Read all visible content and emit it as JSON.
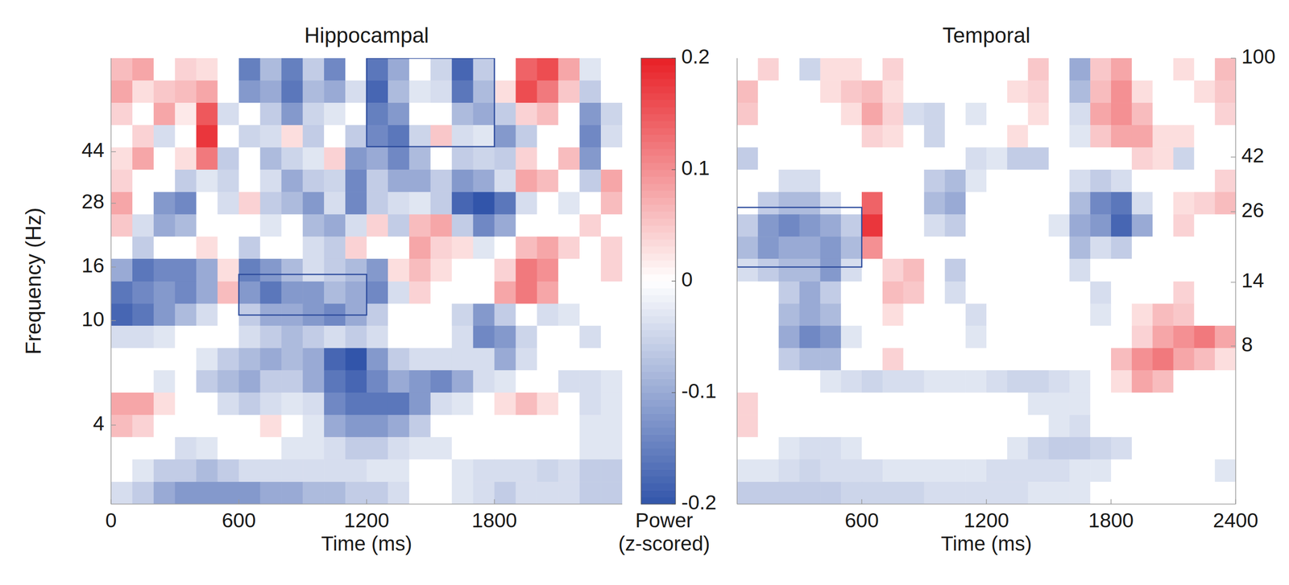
{
  "chart_data": [
    {
      "type": "heatmap",
      "title": "Hippocampal",
      "x_label": "Time (ms)",
      "y_label": "Frequency (Hz)",
      "xlim": [
        0,
        2400
      ],
      "xticks": [
        0,
        600,
        1200,
        1800
      ],
      "ylim": [
        2,
        100
      ],
      "yticks": [
        4,
        10,
        16,
        28,
        44
      ],
      "log": "y",
      "x_edges": [
        0,
        100,
        200,
        300,
        400,
        500,
        600,
        700,
        800,
        900,
        1000,
        1100,
        1200,
        1300,
        1400,
        1500,
        1600,
        1700,
        1800,
        1900,
        2000,
        2100,
        2200,
        2300,
        2400
      ],
      "y_edges": [
        100,
        82.2,
        67.6,
        55.6,
        45.7,
        37.6,
        30.9,
        25.4,
        20.9,
        17.2,
        14.1,
        11.6,
        9.56,
        7.86,
        6.47,
        5.32,
        4.37,
        3.6,
        2.96,
        2.43,
        2.0
      ],
      "cells": [
        [
          0.06,
          0.08,
          0,
          0.04,
          0.03,
          0,
          -0.15,
          -0.08,
          -0.15,
          -0.06,
          -0.14,
          0,
          -0.16,
          -0.1,
          0,
          -0.05,
          -0.18,
          -0.06,
          0,
          0.14,
          0.16,
          0.08,
          -0.03,
          0
        ],
        [
          0.08,
          0.03,
          0.05,
          0.06,
          0.08,
          0,
          -0.12,
          -0.1,
          -0.16,
          -0.08,
          -0.1,
          -0.04,
          -0.18,
          -0.08,
          -0.03,
          -0.04,
          -0.16,
          -0.08,
          0.03,
          0.16,
          0.12,
          0.05,
          -0.06,
          0
        ],
        [
          0.04,
          0,
          0.08,
          0.02,
          0.15,
          -0.04,
          0,
          -0.06,
          -0.12,
          -0.05,
          -0.03,
          0,
          -0.15,
          -0.12,
          0,
          0,
          -0.08,
          -0.1,
          -0.06,
          0.04,
          0.06,
          0,
          -0.12,
          -0.05
        ],
        [
          0,
          0.04,
          -0.04,
          0,
          0.18,
          0,
          -0.05,
          -0.04,
          0.03,
          -0.06,
          0,
          -0.06,
          -0.14,
          -0.16,
          -0.05,
          0.05,
          -0.04,
          -0.03,
          -0.12,
          -0.06,
          0,
          0,
          -0.14,
          -0.04
        ],
        [
          0.03,
          0.08,
          0,
          0.03,
          0.12,
          -0.06,
          0,
          -0.08,
          -0.05,
          -0.03,
          0.04,
          -0.12,
          -0.1,
          -0.14,
          -0.08,
          0,
          -0.06,
          -0.05,
          -0.06,
          0.04,
          0,
          0.06,
          -0.12,
          0
        ],
        [
          0.04,
          0,
          0,
          -0.06,
          -0.03,
          -0.05,
          0,
          -0.04,
          -0.1,
          -0.06,
          -0.05,
          -0.14,
          -0.06,
          -0.1,
          -0.1,
          -0.06,
          -0.12,
          -0.1,
          -0.04,
          0.08,
          0.06,
          0,
          -0.06,
          0.08
        ],
        [
          0.08,
          0,
          -0.12,
          -0.14,
          0,
          -0.04,
          0.04,
          -0.06,
          -0.08,
          -0.12,
          -0.04,
          -0.14,
          -0.06,
          -0.04,
          -0.03,
          -0.06,
          -0.18,
          -0.2,
          -0.16,
          -0.04,
          0,
          -0.03,
          0,
          0.06
        ],
        [
          0.05,
          -0.04,
          -0.1,
          -0.08,
          0,
          0,
          0,
          -0.03,
          0,
          -0.08,
          -0.1,
          -0.04,
          0.04,
          -0.06,
          0.06,
          0.08,
          -0.06,
          -0.14,
          -0.1,
          0,
          0,
          0,
          0.04,
          0
        ],
        [
          0,
          -0.06,
          0,
          0,
          0.03,
          0,
          -0.06,
          0,
          0,
          -0.04,
          -0.06,
          0.04,
          0,
          0,
          0.08,
          0.04,
          0.03,
          -0.03,
          0,
          0.06,
          0.08,
          0.04,
          0,
          0.04
        ],
        [
          -0.1,
          -0.16,
          -0.14,
          -0.14,
          -0.1,
          0.03,
          -0.15,
          -0.12,
          -0.08,
          -0.04,
          -0.06,
          -0.08,
          -0.12,
          0.03,
          0.06,
          0.03,
          0,
          0,
          0.04,
          0.12,
          0.1,
          0,
          0,
          0.04
        ],
        [
          -0.16,
          -0.14,
          -0.12,
          -0.14,
          -0.1,
          0.06,
          -0.12,
          -0.16,
          -0.12,
          -0.12,
          -0.08,
          -0.1,
          -0.14,
          -0.04,
          0.04,
          0,
          0,
          0,
          0.08,
          0.12,
          0.08,
          0,
          0,
          0
        ],
        [
          -0.18,
          -0.16,
          -0.12,
          -0.08,
          -0.04,
          0,
          -0.06,
          -0.1,
          -0.1,
          -0.12,
          -0.14,
          -0.1,
          -0.06,
          0,
          0,
          0,
          -0.05,
          -0.12,
          -0.06,
          0,
          -0.04,
          -0.03,
          0,
          0
        ],
        [
          -0.04,
          -0.04,
          -0.03,
          0,
          0,
          0,
          -0.04,
          -0.06,
          -0.08,
          -0.06,
          -0.04,
          -0.06,
          -0.04,
          0,
          0,
          0,
          -0.04,
          -0.14,
          -0.12,
          -0.05,
          0,
          0,
          -0.04,
          0
        ],
        [
          0,
          0,
          0,
          0,
          -0.03,
          -0.06,
          -0.08,
          -0.1,
          -0.08,
          -0.1,
          -0.18,
          -0.2,
          -0.12,
          -0.06,
          -0.04,
          -0.04,
          -0.04,
          -0.04,
          -0.1,
          -0.04,
          0,
          0,
          0,
          0
        ],
        [
          0,
          0,
          -0.03,
          0,
          -0.06,
          -0.08,
          -0.1,
          -0.06,
          -0.06,
          -0.1,
          -0.16,
          -0.18,
          -0.14,
          -0.1,
          -0.12,
          -0.14,
          -0.1,
          -0.04,
          -0.03,
          0,
          0,
          -0.04,
          -0.04,
          -0.03
        ],
        [
          0.08,
          0.08,
          0.03,
          0,
          0,
          -0.04,
          -0.06,
          -0.04,
          -0.03,
          -0.04,
          -0.14,
          -0.16,
          -0.16,
          -0.16,
          -0.12,
          -0.04,
          -0.03,
          0,
          0.03,
          0.06,
          0.03,
          0,
          -0.04,
          -0.03
        ],
        [
          0.06,
          0.04,
          0,
          0,
          0,
          0,
          0,
          0.03,
          0,
          -0.03,
          -0.1,
          -0.12,
          -0.12,
          -0.1,
          -0.06,
          0,
          0,
          0,
          0,
          0,
          0,
          0,
          -0.03,
          -0.03
        ],
        [
          0,
          0,
          0,
          -0.04,
          -0.03,
          0,
          0,
          0,
          -0.03,
          -0.03,
          -0.04,
          -0.06,
          -0.06,
          -0.04,
          -0.03,
          -0.03,
          0,
          0,
          0,
          0,
          0,
          0,
          -0.03,
          -0.03
        ],
        [
          0,
          -0.03,
          -0.06,
          -0.06,
          -0.08,
          -0.06,
          -0.04,
          -0.04,
          -0.04,
          -0.04,
          -0.04,
          -0.04,
          -0.03,
          -0.03,
          0,
          0,
          -0.03,
          -0.04,
          -0.04,
          -0.04,
          -0.05,
          -0.04,
          -0.06,
          -0.06
        ],
        [
          -0.04,
          -0.06,
          -0.1,
          -0.12,
          -0.12,
          -0.12,
          -0.12,
          -0.1,
          -0.1,
          -0.08,
          -0.08,
          -0.06,
          -0.06,
          -0.04,
          0,
          0,
          -0.03,
          -0.04,
          -0.06,
          -0.04,
          -0.04,
          -0.04,
          -0.06,
          -0.06
        ]
      ],
      "boxes": [
        {
          "x": [
            1200,
            1800
          ],
          "y": [
            46,
            100
          ]
        },
        {
          "x": [
            600,
            1200
          ],
          "y": [
            10.5,
            15
          ]
        }
      ],
      "colorbar": {
        "range": [
          -0.2,
          0.2
        ],
        "ticks": [
          0.2,
          0.1,
          0,
          -0.1,
          -0.2
        ],
        "label": "Power (z-scored)"
      }
    },
    {
      "type": "heatmap",
      "title": "Temporal",
      "x_label": "Time (ms)",
      "xlim": [
        0,
        2400
      ],
      "xticks": [
        600,
        1200,
        1800,
        2400
      ],
      "ylim": [
        2,
        100
      ],
      "yticks": [
        8,
        14,
        26,
        42,
        100
      ],
      "log": "y",
      "x_edges": [
        0,
        100,
        200,
        300,
        400,
        500,
        600,
        700,
        800,
        900,
        1000,
        1100,
        1200,
        1300,
        1400,
        1500,
        1600,
        1700,
        1800,
        1900,
        2000,
        2100,
        2200,
        2300,
        2400
      ],
      "y_edges": [
        100,
        82.2,
        67.6,
        55.6,
        45.7,
        37.6,
        30.9,
        25.4,
        20.9,
        17.2,
        14.1,
        11.6,
        9.56,
        7.86,
        6.47,
        5.32,
        4.37,
        3.6,
        2.96,
        2.43,
        2.0
      ],
      "cells": [
        [
          0,
          0.04,
          0,
          -0.05,
          0.03,
          0.03,
          0,
          0.04,
          0,
          0,
          0,
          0,
          0,
          0,
          0.05,
          0,
          -0.1,
          0.05,
          0.08,
          0,
          0,
          0.03,
          0,
          0.06
        ],
        [
          0.06,
          0,
          0,
          0,
          0.03,
          0.05,
          0.06,
          0.03,
          0,
          0,
          0,
          0,
          0,
          0.03,
          0.04,
          0,
          -0.08,
          0.06,
          0.1,
          0.03,
          0,
          0,
          0.03,
          0.05
        ],
        [
          0.05,
          0,
          0,
          0,
          0,
          0.03,
          0.08,
          0.04,
          -0.04,
          -0.05,
          0,
          -0.03,
          0,
          0,
          0.03,
          0,
          -0.04,
          0.08,
          0.1,
          0.06,
          0,
          0,
          0,
          0.04
        ],
        [
          0,
          0,
          0,
          0,
          0,
          0,
          0.04,
          0.03,
          0,
          -0.05,
          0,
          0,
          0,
          0.03,
          0,
          0,
          -0.03,
          0.05,
          0.08,
          0.08,
          0.03,
          0.03,
          0,
          0
        ],
        [
          -0.06,
          0,
          0,
          0,
          0,
          0,
          0,
          0,
          0,
          0,
          0,
          -0.04,
          -0.03,
          -0.06,
          -0.06,
          0,
          0,
          0,
          0,
          0.04,
          0.03,
          -0.05,
          0,
          0
        ],
        [
          0,
          0,
          -0.04,
          -0.04,
          0,
          0,
          0,
          0,
          0,
          -0.06,
          -0.08,
          -0.03,
          0,
          0,
          0,
          0,
          -0.04,
          -0.06,
          -0.04,
          0,
          0,
          0,
          0,
          0.04
        ],
        [
          0,
          -0.06,
          -0.08,
          -0.08,
          -0.04,
          0,
          0.14,
          0,
          0,
          -0.08,
          -0.1,
          0,
          0,
          0,
          0,
          0,
          -0.08,
          -0.14,
          -0.16,
          -0.04,
          0,
          0.03,
          0.04,
          0.06
        ],
        [
          -0.06,
          -0.12,
          -0.14,
          -0.12,
          -0.1,
          -0.06,
          0.18,
          0,
          0,
          -0.04,
          -0.06,
          0,
          0,
          0,
          0,
          -0.03,
          -0.1,
          -0.12,
          -0.18,
          -0.1,
          0,
          0.04,
          0,
          0
        ],
        [
          -0.08,
          -0.12,
          -0.1,
          -0.1,
          -0.12,
          -0.08,
          0.1,
          0,
          0,
          0,
          0,
          0,
          0,
          0,
          0,
          0,
          -0.08,
          -0.04,
          -0.06,
          0,
          0,
          0,
          0,
          0
        ],
        [
          -0.04,
          -0.06,
          -0.08,
          -0.08,
          -0.12,
          -0.04,
          0,
          0.04,
          0.06,
          0,
          -0.06,
          0,
          0,
          0,
          0,
          0,
          -0.04,
          0,
          0,
          0,
          0,
          0,
          0,
          0
        ],
        [
          0,
          0,
          -0.06,
          -0.1,
          -0.06,
          0,
          0,
          0.06,
          0.05,
          0,
          -0.04,
          0,
          0,
          0,
          0,
          0,
          0,
          -0.04,
          0,
          0,
          0,
          0.04,
          0,
          0
        ],
        [
          0,
          0,
          -0.08,
          -0.1,
          -0.08,
          0,
          0,
          0.03,
          0,
          0,
          0,
          -0.04,
          0,
          0,
          0,
          0,
          0,
          -0.03,
          0,
          0.03,
          0.06,
          0.05,
          0,
          0
        ],
        [
          0,
          0,
          -0.1,
          -0.14,
          -0.12,
          -0.03,
          0,
          0,
          0,
          0,
          0,
          -0.03,
          0,
          0,
          0,
          0,
          0,
          0,
          0,
          0.04,
          0.08,
          0.1,
          0.12,
          0.08
        ],
        [
          0,
          0,
          -0.06,
          -0.08,
          -0.08,
          0,
          0,
          0.04,
          0,
          0,
          0,
          0,
          0,
          0,
          0,
          0,
          0,
          0,
          0.06,
          0.1,
          0.12,
          0.08,
          0.06,
          0.03
        ],
        [
          0,
          0,
          0,
          0,
          -0.03,
          -0.04,
          -0.05,
          -0.04,
          -0.04,
          -0.03,
          -0.03,
          -0.03,
          -0.04,
          -0.05,
          -0.05,
          -0.04,
          -0.03,
          0,
          0.03,
          0.08,
          0.06,
          0,
          0,
          0
        ],
        [
          0.04,
          0,
          0,
          0,
          0,
          0,
          0,
          0,
          0,
          0,
          0,
          0,
          0,
          0,
          -0.03,
          -0.03,
          -0.03,
          0,
          0,
          0,
          0,
          0,
          0,
          0
        ],
        [
          0.04,
          0,
          0,
          0,
          0,
          0,
          0,
          0,
          0,
          0,
          0,
          0,
          0,
          0,
          0,
          -0.03,
          -0.04,
          0,
          0,
          0,
          0,
          0,
          0,
          0
        ],
        [
          0,
          0,
          -0.03,
          -0.04,
          -0.04,
          -0.03,
          0,
          0,
          0,
          0,
          0,
          0,
          0,
          -0.03,
          -0.05,
          -0.06,
          -0.06,
          -0.05,
          -0.04,
          0,
          0,
          0,
          0,
          0
        ],
        [
          -0.03,
          -0.03,
          -0.04,
          -0.05,
          -0.04,
          -0.04,
          -0.04,
          -0.03,
          -0.03,
          -0.03,
          -0.03,
          -0.03,
          -0.04,
          -0.04,
          -0.04,
          -0.04,
          -0.03,
          -0.03,
          0,
          0,
          0,
          0,
          0,
          -0.03
        ],
        [
          -0.06,
          -0.06,
          -0.06,
          -0.06,
          -0.06,
          -0.05,
          -0.05,
          -0.05,
          -0.05,
          -0.04,
          -0.04,
          -0.04,
          -0.04,
          -0.04,
          -0.03,
          -0.03,
          -0.03,
          0,
          0,
          0,
          0,
          0,
          0,
          0
        ]
      ],
      "boxes": [
        {
          "x": [
            0,
            600
          ],
          "y": [
            16,
            27
          ]
        }
      ]
    }
  ]
}
